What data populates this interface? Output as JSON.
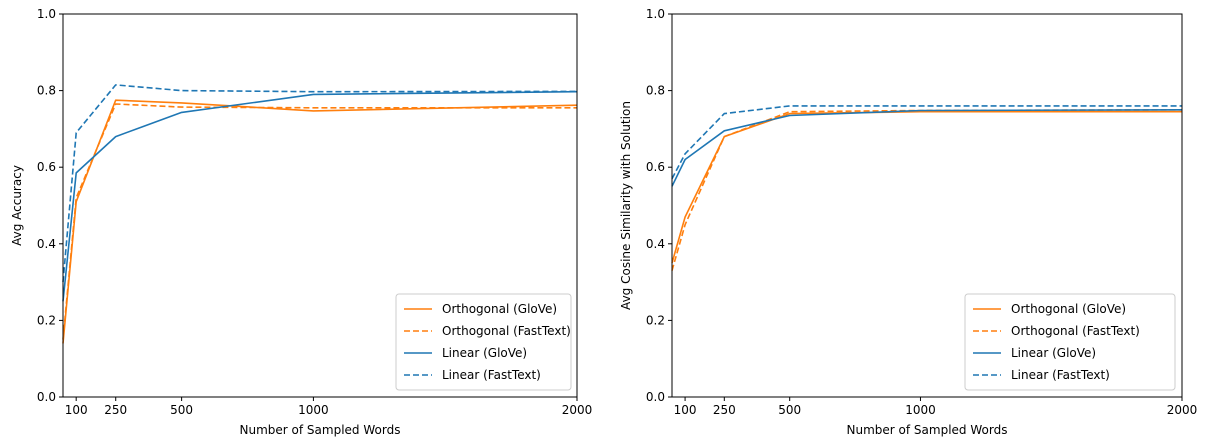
{
  "colors": {
    "orthogonal": "#ff7f0e",
    "linear": "#1f77b4"
  },
  "chart_data": [
    {
      "type": "line",
      "xlabel": "Number of Sampled Words",
      "ylabel": "Avg Accuracy",
      "xlim": [
        50,
        2000
      ],
      "ylim": [
        0,
        1.0
      ],
      "xticks": [
        100,
        250,
        500,
        1000,
        2000
      ],
      "yticks": [
        "0.0",
        "0.2",
        "0.4",
        "0.6",
        "0.8",
        "1.0"
      ],
      "legend_position": "lower-right",
      "series": [
        {
          "name": "Orthogonal (GloVe)",
          "color": "#ff7f0e",
          "style": "solid",
          "x": [
            50,
            100,
            250,
            500,
            1000,
            2000
          ],
          "y": [
            0.14,
            0.51,
            0.775,
            0.768,
            0.747,
            0.762
          ]
        },
        {
          "name": "Orthogonal (FastText)",
          "color": "#ff7f0e",
          "style": "dashed",
          "x": [
            50,
            100,
            250,
            500,
            1000,
            2000
          ],
          "y": [
            0.15,
            0.52,
            0.765,
            0.757,
            0.755,
            0.755
          ]
        },
        {
          "name": "Linear (GloVe)",
          "color": "#1f77b4",
          "style": "solid",
          "x": [
            50,
            100,
            250,
            500,
            1000,
            2000
          ],
          "y": [
            0.25,
            0.585,
            0.68,
            0.743,
            0.79,
            0.797
          ]
        },
        {
          "name": "Linear (FastText)",
          "color": "#1f77b4",
          "style": "dashed",
          "x": [
            50,
            100,
            250,
            500,
            1000,
            2000
          ],
          "y": [
            0.3,
            0.69,
            0.815,
            0.8,
            0.797,
            0.798
          ]
        }
      ]
    },
    {
      "type": "line",
      "xlabel": "Number of Sampled Words",
      "ylabel": "Avg Cosine Similarity with Solution",
      "xlim": [
        50,
        2000
      ],
      "ylim": [
        0,
        1.0
      ],
      "xticks": [
        100,
        250,
        500,
        1000,
        2000
      ],
      "yticks": [
        "0.0",
        "0.2",
        "0.4",
        "0.6",
        "0.8",
        "1.0"
      ],
      "legend_position": "lower-right",
      "series": [
        {
          "name": "Orthogonal (GloVe)",
          "color": "#ff7f0e",
          "style": "solid",
          "x": [
            50,
            100,
            250,
            500,
            1000,
            2000
          ],
          "y": [
            0.35,
            0.47,
            0.68,
            0.74,
            0.745,
            0.745
          ]
        },
        {
          "name": "Orthogonal (FastText)",
          "color": "#ff7f0e",
          "style": "dashed",
          "x": [
            50,
            100,
            250,
            500,
            1000,
            2000
          ],
          "y": [
            0.33,
            0.45,
            0.68,
            0.745,
            0.748,
            0.75
          ]
        },
        {
          "name": "Linear (GloVe)",
          "color": "#1f77b4",
          "style": "solid",
          "x": [
            50,
            100,
            250,
            500,
            1000,
            2000
          ],
          "y": [
            0.55,
            0.62,
            0.695,
            0.735,
            0.748,
            0.75
          ]
        },
        {
          "name": "Linear (FastText)",
          "color": "#1f77b4",
          "style": "dashed",
          "x": [
            50,
            100,
            250,
            500,
            1000,
            2000
          ],
          "y": [
            0.57,
            0.635,
            0.74,
            0.76,
            0.76,
            0.76
          ]
        }
      ]
    }
  ]
}
